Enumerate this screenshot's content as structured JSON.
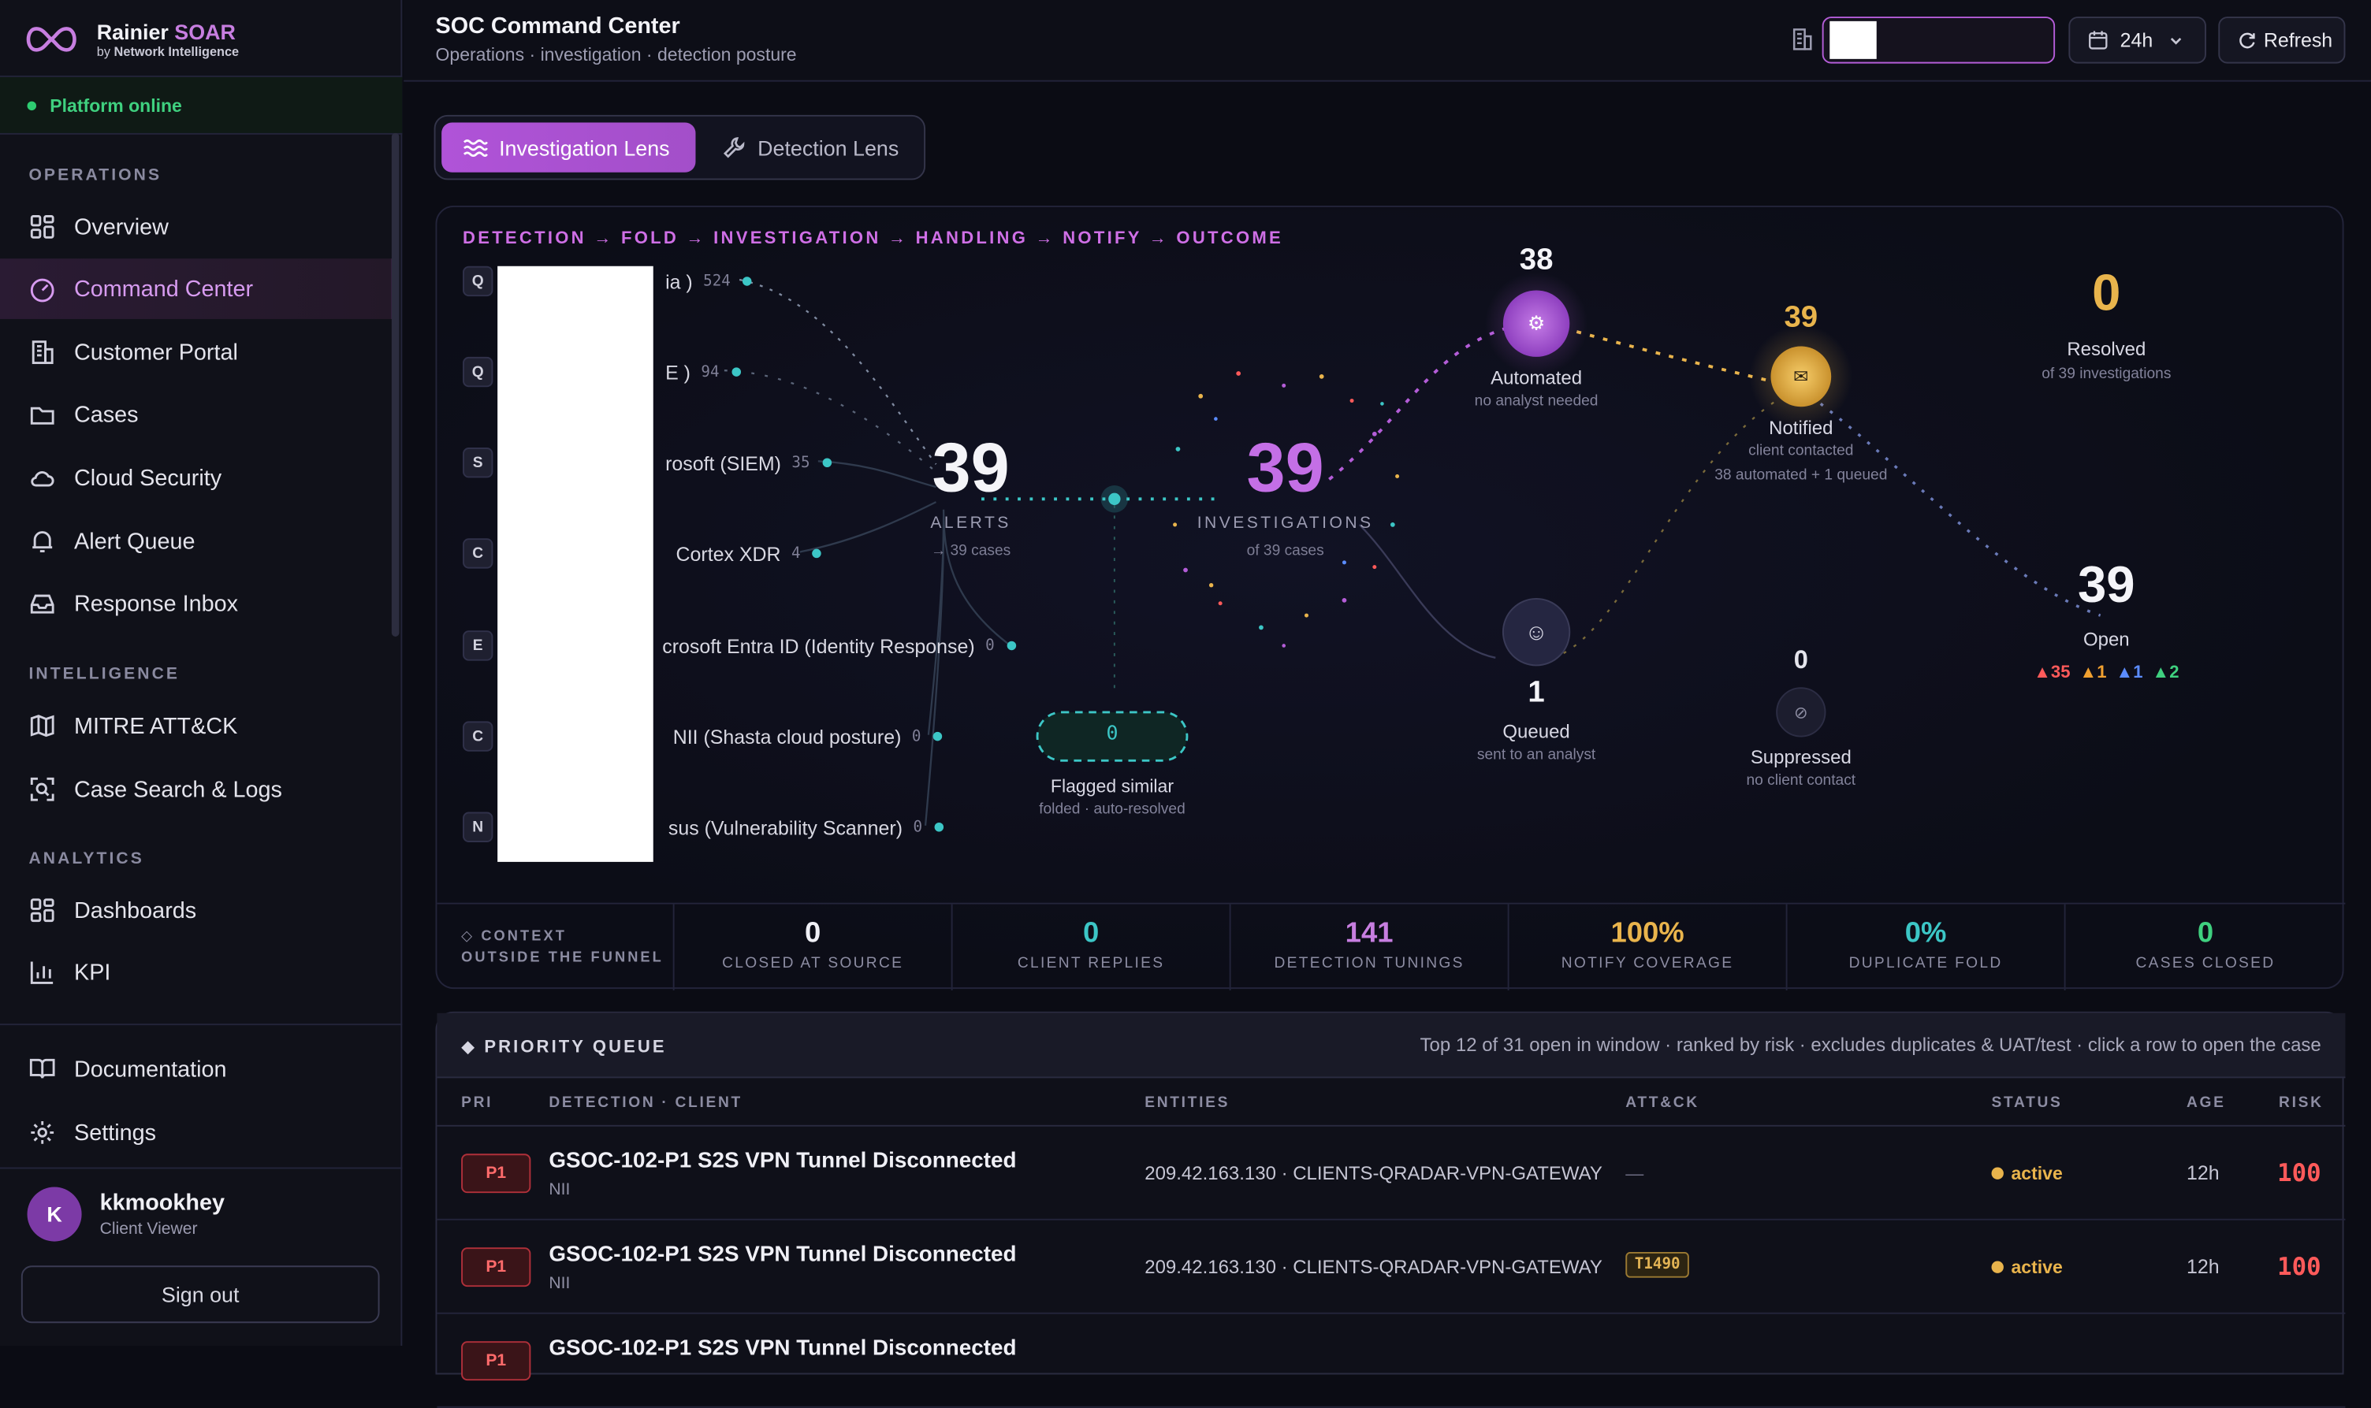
{
  "brand": {
    "name_part1": "Rainier ",
    "name_part2": "SOAR",
    "by": "by ",
    "by_strong": "Network Intelligence"
  },
  "platform_status": "Platform online",
  "sidebar": {
    "sections": {
      "operations": "OPERATIONS",
      "intelligence": "INTELLIGENCE",
      "analytics": "ANALYTICS"
    },
    "items": [
      {
        "label": "Overview",
        "icon": "grid-icon"
      },
      {
        "label": "Command Center",
        "icon": "gauge-icon",
        "active": true
      },
      {
        "label": "Customer Portal",
        "icon": "building-icon"
      },
      {
        "label": "Cases",
        "icon": "folder-icon"
      },
      {
        "label": "Cloud Security",
        "icon": "cloud-icon"
      },
      {
        "label": "Alert Queue",
        "icon": "bell-icon"
      },
      {
        "label": "Response Inbox",
        "icon": "inbox-icon"
      },
      {
        "label": "MITRE ATT&CK",
        "icon": "map-icon"
      },
      {
        "label": "Case Search & Logs",
        "icon": "scan-search-icon"
      },
      {
        "label": "Dashboards",
        "icon": "grid-icon"
      },
      {
        "label": "KPI",
        "icon": "bar-chart-icon"
      },
      {
        "label": "Documentation",
        "icon": "book-icon"
      },
      {
        "label": "Settings",
        "icon": "gear-icon"
      }
    ],
    "user": {
      "initial": "K",
      "name": "kkmookhey",
      "role": "Client Viewer"
    },
    "sign_out": "Sign out"
  },
  "header": {
    "title": "SOC Command Center",
    "subtitle": "Operations · investigation · detection posture",
    "time_range": "24h",
    "refresh": "Refresh"
  },
  "lenses": [
    {
      "label": "Investigation Lens",
      "active": true
    },
    {
      "label": "Detection Lens",
      "active": false
    }
  ],
  "funnel": {
    "flow_title": "DETECTION → FOLD → INVESTIGATION → HANDLING → NOTIFY → OUTCOME",
    "sources": [
      {
        "badge": "Q",
        "name": "ia )",
        "count": "524"
      },
      {
        "badge": "Q",
        "name": "E )",
        "count": "94"
      },
      {
        "badge": "S",
        "name": "rosoft (SIEM)",
        "count": "35"
      },
      {
        "badge": "C",
        "name": "Cortex XDR",
        "count": "4"
      },
      {
        "badge": "E",
        "name": "crosoft Entra ID (Identity Response)",
        "count": "0"
      },
      {
        "badge": "C",
        "name": "NII (Shasta cloud posture)",
        "count": "0"
      },
      {
        "badge": "N",
        "name": "sus (Vulnerability Scanner)",
        "count": "0"
      }
    ],
    "alerts": {
      "value": "39",
      "label": "ALERTS",
      "sub": "→ 39 cases"
    },
    "flagged": {
      "value": "0",
      "label": "Flagged similar",
      "sub": "folded · auto-resolved"
    },
    "investigations": {
      "value": "39",
      "label": "INVESTIGATIONS",
      "sub": "of 39 cases"
    },
    "automated": {
      "value": "38",
      "label": "Automated",
      "sub": "no analyst needed"
    },
    "queued": {
      "value": "1",
      "label": "Queued",
      "sub": "sent to an analyst"
    },
    "notified": {
      "value": "39",
      "label": "Notified",
      "sub": "client contacted",
      "sub2": "38 automated + 1 queued"
    },
    "suppressed": {
      "value": "0",
      "label": "Suppressed",
      "sub": "no client contact"
    },
    "resolved": {
      "value": "0",
      "label": "Resolved",
      "sub": "of 39 investigations"
    },
    "open": {
      "value": "39",
      "label": "Open",
      "sev": [
        "▲35",
        "▲1",
        "▲1",
        "▲2"
      ]
    },
    "colors": {
      "teal": "#3cc6c6",
      "purple": "#b45dd8",
      "gold": "#e9b44c",
      "red": "#ff5a5a",
      "orange": "#f0a030",
      "blue": "#5b8cff",
      "green": "#3fd07f"
    }
  },
  "context": {
    "label_line1": "◇ CONTEXT",
    "label_line2": "OUTSIDE THE FUNNEL",
    "cells": [
      {
        "value": "0",
        "name": "CLOSED AT SOURCE",
        "color": "#f0f0f6"
      },
      {
        "value": "0",
        "name": "CLIENT REPLIES",
        "color": "#3cc6c6"
      },
      {
        "value": "141",
        "name": "DETECTION TUNINGS",
        "color": "#c77ee0"
      },
      {
        "value": "100%",
        "name": "NOTIFY COVERAGE",
        "color": "#e9b44c"
      },
      {
        "value": "0%",
        "name": "DUPLICATE FOLD",
        "color": "#3cc6c6"
      },
      {
        "value": "0",
        "name": "CASES CLOSED",
        "color": "#3fd07f"
      }
    ]
  },
  "queue": {
    "title": "◆ PRIORITY QUEUE",
    "note": "Top 12 of 31 open in window · ranked by risk · excludes duplicates & UAT/test · click a row to open the case",
    "columns": {
      "pri": "PRI",
      "detection": "DETECTION · CLIENT",
      "entities": "ENTITIES",
      "attack": "ATT&CK",
      "status": "STATUS",
      "age": "AGE",
      "risk": "RISK"
    },
    "rows": [
      {
        "pri": "P1",
        "title": "GSOC-102-P1 S2S VPN Tunnel Disconnected",
        "client": "NII",
        "entities": "209.42.163.130 · CLIENTS-QRADAR-VPN-GATEWAY",
        "attack": "—",
        "status": "active",
        "age": "12h",
        "risk": "100"
      },
      {
        "pri": "P1",
        "title": "GSOC-102-P1 S2S VPN Tunnel Disconnected",
        "client": "NII",
        "entities": "209.42.163.130 · CLIENTS-QRADAR-VPN-GATEWAY",
        "attack": "T1490",
        "status": "active",
        "age": "12h",
        "risk": "100"
      },
      {
        "pri": "P1",
        "title": "GSOC-102-P1 S2S VPN Tunnel Disconnected",
        "client": "",
        "entities": "",
        "attack": "",
        "status": "",
        "age": "",
        "risk": ""
      }
    ]
  }
}
